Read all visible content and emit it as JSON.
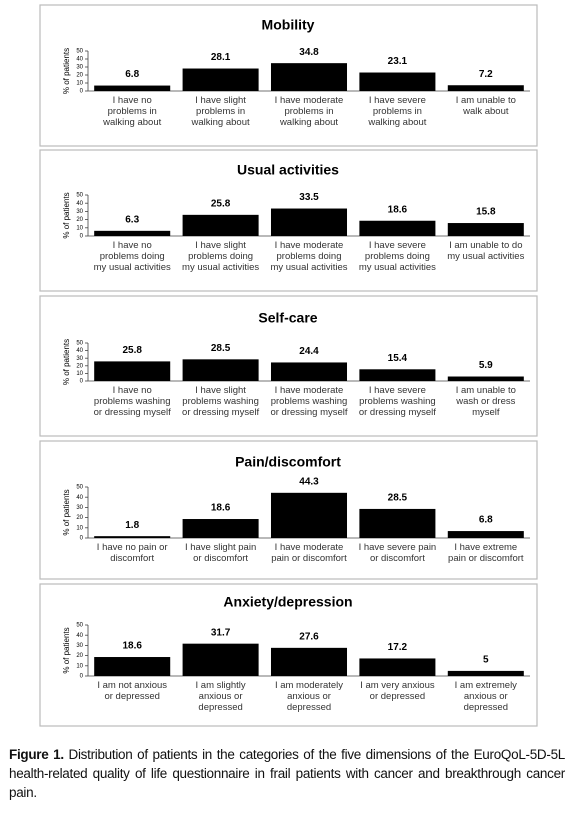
{
  "chart_data": [
    {
      "type": "bar",
      "title": "Mobility",
      "y_label": "% of patients",
      "color": "#000000",
      "ylim": [
        0,
        50
      ],
      "yticks": [
        0,
        10,
        20,
        30,
        40,
        50
      ],
      "categories": [
        "I have no\nproblems in\nwalking about",
        "I have slight\nproblems in\nwalking about",
        "I have moderate\nproblems in\nwalking about",
        "I have severe\nproblems in\nwalking about",
        "I am unable to\nwalk about"
      ],
      "values": [
        6.8,
        28.1,
        34.8,
        23.1,
        7.2
      ]
    },
    {
      "type": "bar",
      "title": "Usual activities",
      "y_label": "% of patients",
      "color": "#000000",
      "ylim": [
        0,
        50
      ],
      "yticks": [
        0,
        10,
        20,
        30,
        40,
        50
      ],
      "categories": [
        "I have no\nproblems doing\nmy usual activities",
        "I have slight\nproblems doing\nmy usual activities",
        "I have moderate\nproblems doing\nmy usual activities",
        "I have severe\nproblems doing\nmy usual activities",
        "I am unable to do\nmy usual activities"
      ],
      "values": [
        6.3,
        25.8,
        33.5,
        18.6,
        15.8
      ]
    },
    {
      "type": "bar",
      "title": "Self-care",
      "y_label": "% of patients",
      "color": "#000000",
      "ylim": [
        0,
        50
      ],
      "yticks": [
        0,
        10,
        20,
        30,
        40,
        50
      ],
      "categories": [
        "I have no\nproblems washing\nor dressing myself",
        "I have slight\nproblems washing\nor dressing myself",
        "I have moderate\nproblems washing\nor dressing myself",
        "I have severe\nproblems washing\nor dressing myself",
        "I am unable to\nwash or dress\nmyself"
      ],
      "values": [
        25.8,
        28.5,
        24.4,
        15.4,
        5.9
      ]
    },
    {
      "type": "bar",
      "title": "Pain/discomfort",
      "y_label": "% of patients",
      "color": "#000000",
      "ylim": [
        0,
        50
      ],
      "yticks": [
        0,
        10,
        20,
        30,
        40,
        50
      ],
      "categories": [
        "I have no pain or\ndiscomfort",
        "I have slight pain\nor discomfort",
        "I have moderate\npain or discomfort",
        "I have severe pain\nor discomfort",
        "I have extreme\npain or discomfort"
      ],
      "values": [
        1.8,
        18.6,
        44.3,
        28.5,
        6.8
      ]
    },
    {
      "type": "bar",
      "title": "Anxiety/depression",
      "y_label": "% of patients",
      "color": "#000000",
      "ylim": [
        0,
        50
      ],
      "yticks": [
        0,
        10,
        20,
        30,
        40,
        50
      ],
      "categories": [
        "I am not anxious\nor depressed",
        "I am slightly\nanxious or\ndepressed",
        "I am moderately\nanxious or\ndepressed",
        "I am very anxious\nor depressed",
        "I am extremely\nanxious or\ndepressed"
      ],
      "values": [
        18.6,
        31.7,
        27.6,
        17.2,
        5
      ]
    }
  ],
  "caption": {
    "label": "Figure 1.",
    "text": "Distribution of patients in the categories of the five dimensions of the EuroQoL-5D-5L health-related quality of life questionnaire in frail patients with cancer and breakthrough cancer pain."
  }
}
